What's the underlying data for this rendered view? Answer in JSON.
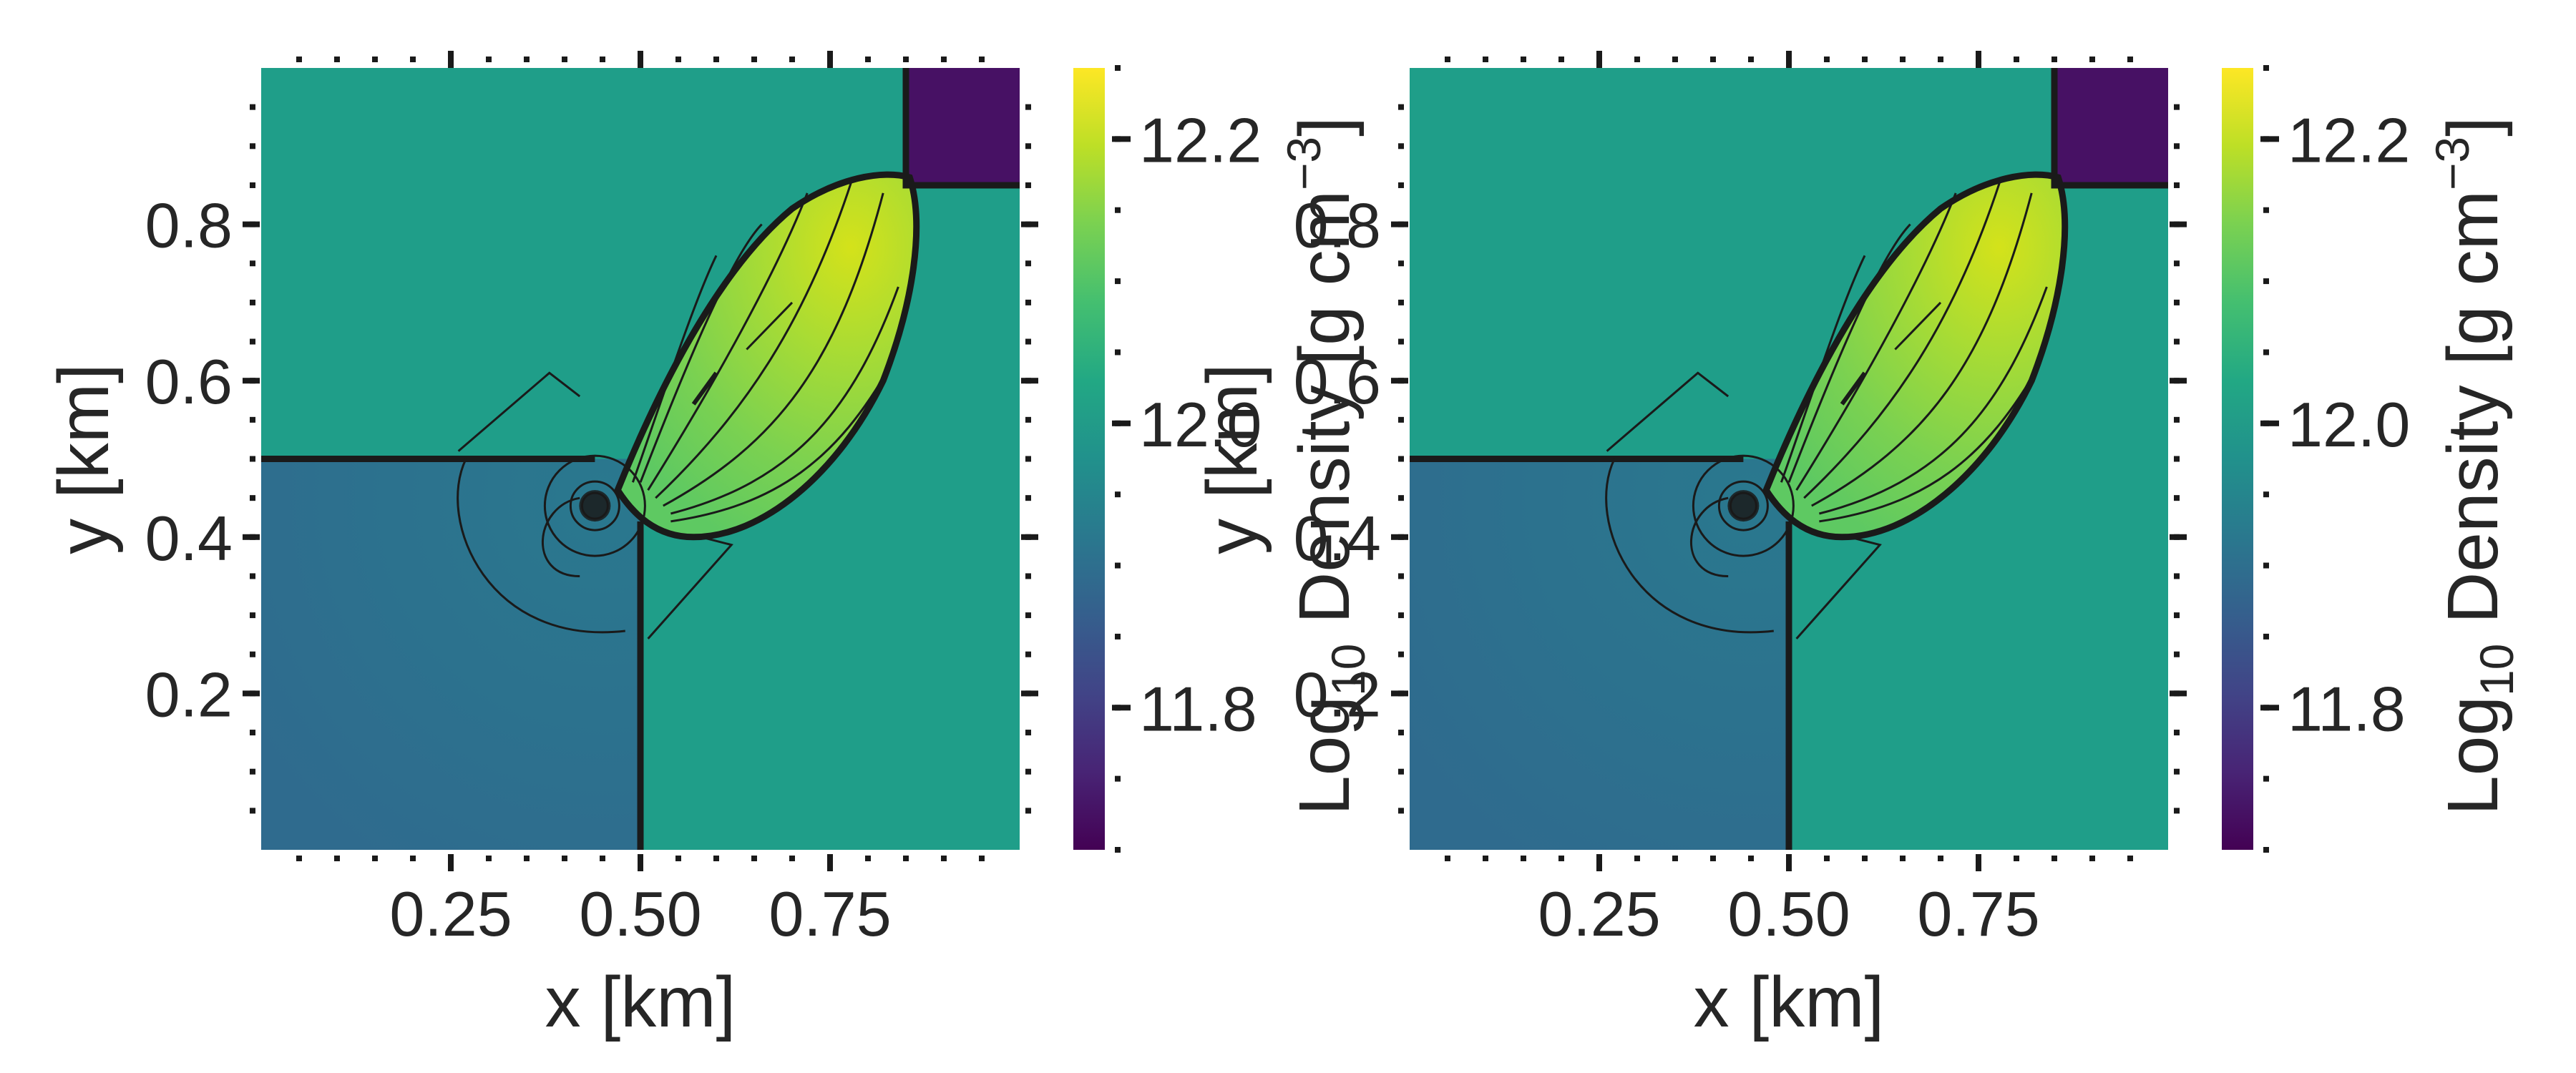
{
  "chart_data": [
    {
      "type": "heatmap",
      "title": "",
      "xlabel": "x [km]",
      "ylabel": "y [km]",
      "colorbar_label": "Log",
      "colorbar_sub": "10",
      "colorbar_label_rest": " Density [g cm",
      "colorbar_sup": "−3",
      "colorbar_close": "]",
      "colormap": "viridis",
      "xlim": [
        0.0,
        1.0
      ],
      "ylim": [
        0.0,
        1.0
      ],
      "clim": [
        11.7,
        12.25
      ],
      "xticks": [
        0.25,
        0.5,
        0.75
      ],
      "xtick_labels": [
        "0.25",
        "0.50",
        "0.75"
      ],
      "yticks": [
        0.2,
        0.4,
        0.6,
        0.8
      ],
      "ytick_labels": [
        "0.2",
        "0.4",
        "0.6",
        "0.8"
      ],
      "cbar_ticks": [
        11.8,
        12.0,
        12.2
      ],
      "cbar_tick_labels": [
        "11.8",
        "12.0",
        "12.2"
      ],
      "regions": [
        {
          "name": "upper-right quadrant",
          "x": [
            0.85,
            1.0
          ],
          "y": [
            0.85,
            1.0
          ],
          "log_density": 11.72
        },
        {
          "name": "background",
          "x": [
            0.0,
            1.0
          ],
          "y": [
            0.0,
            1.0
          ],
          "log_density": 11.98
        },
        {
          "name": "lower-left quadrant",
          "x": [
            0.0,
            0.5
          ],
          "y": [
            0.0,
            0.5
          ],
          "log_density": 11.9
        },
        {
          "name": "shocked jet lobe",
          "peak_log_density": 12.22
        }
      ],
      "contour_lines": true
    },
    {
      "type": "heatmap",
      "title": "",
      "xlabel": "x [km]",
      "ylabel": "y [km]",
      "colorbar_label": "Log",
      "colorbar_sub": "10",
      "colorbar_label_rest": " Density [g cm",
      "colorbar_sup": "−3",
      "colorbar_close": "]",
      "colormap": "viridis",
      "xlim": [
        0.0,
        1.0
      ],
      "ylim": [
        0.0,
        1.0
      ],
      "clim": [
        11.7,
        12.25
      ],
      "xticks": [
        0.25,
        0.5,
        0.75
      ],
      "xtick_labels": [
        "0.25",
        "0.50",
        "0.75"
      ],
      "yticks": [
        0.2,
        0.4,
        0.6,
        0.8
      ],
      "ytick_labels": [
        "0.2",
        "0.4",
        "0.6",
        "0.8"
      ],
      "cbar_ticks": [
        11.8,
        12.0,
        12.2
      ],
      "cbar_tick_labels": [
        "11.8",
        "12.0",
        "12.2"
      ],
      "regions": [
        {
          "name": "upper-right quadrant",
          "x": [
            0.85,
            1.0
          ],
          "y": [
            0.85,
            1.0
          ],
          "log_density": 11.72
        },
        {
          "name": "background",
          "x": [
            0.0,
            1.0
          ],
          "y": [
            0.0,
            1.0
          ],
          "log_density": 11.98
        },
        {
          "name": "lower-left quadrant",
          "x": [
            0.0,
            0.5
          ],
          "y": [
            0.0,
            0.5
          ],
          "log_density": 11.9
        },
        {
          "name": "shocked jet lobe",
          "peak_log_density": 12.22
        }
      ],
      "contour_lines": true
    }
  ]
}
